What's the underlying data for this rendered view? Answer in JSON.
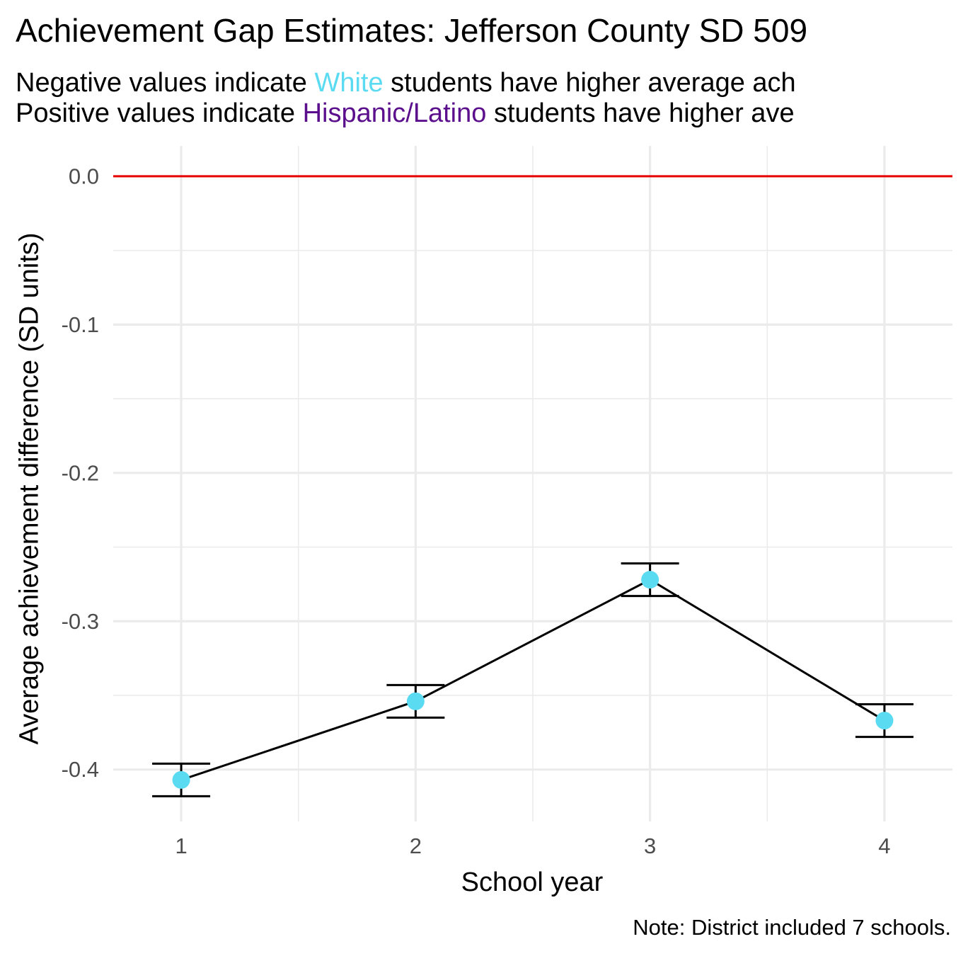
{
  "title": "Achievement Gap Estimates: Jefferson County SD 509",
  "subtitle": {
    "line1": {
      "prefix": "Negative values indicate ",
      "highlight": "White",
      "suffix": " students have higher average ach"
    },
    "line2": {
      "prefix": "Positive values indicate ",
      "highlight": "Hispanic/Latino",
      "suffix": " students have higher ave"
    }
  },
  "caption": "Note: District included 7 schools.",
  "colors": {
    "white_group": "#5bdbf2",
    "hispanic_group": "#5b0f8c",
    "reference_line": "#e60000",
    "point": "#5bdbf2",
    "line": "#000000",
    "grid": "#ebebeb"
  },
  "chart_data": {
    "type": "line",
    "title": "Achievement Gap Estimates: Jefferson County SD 509",
    "xlabel": "School year",
    "ylabel": "Average achievement difference (SD units)",
    "x": [
      1,
      2,
      3,
      4
    ],
    "y": [
      -0.407,
      -0.354,
      -0.272,
      -0.367
    ],
    "error_lower": [
      -0.418,
      -0.365,
      -0.283,
      -0.378
    ],
    "error_upper": [
      -0.396,
      -0.343,
      -0.261,
      -0.356
    ],
    "xticks": [
      "1",
      "2",
      "3",
      "4"
    ],
    "yticks": [
      "0.0",
      "-0.1",
      "-0.2",
      "-0.3",
      "-0.4"
    ],
    "xlim": [
      0.71,
      4.29
    ],
    "ylim": [
      -0.435,
      0.0205
    ],
    "reference_line_y": 0.0,
    "grid": true
  }
}
